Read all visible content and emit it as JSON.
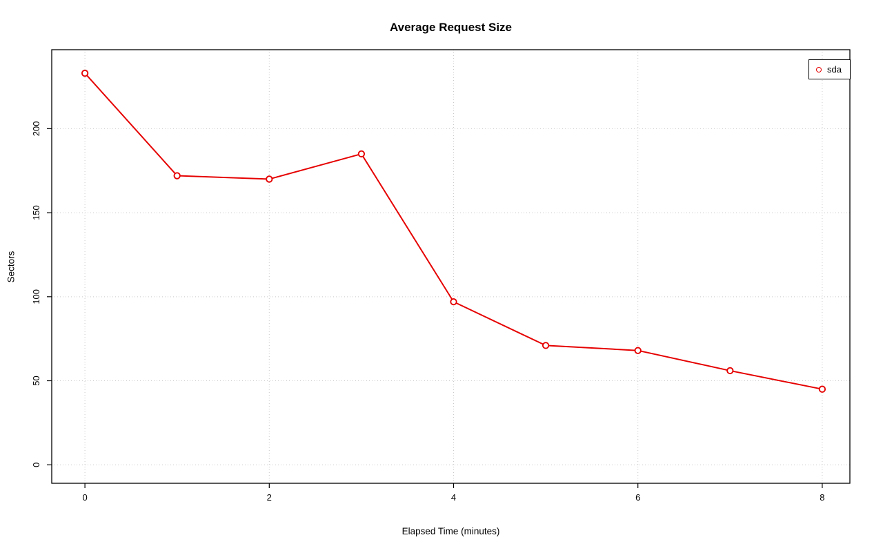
{
  "page": {
    "background": "#ffffff"
  },
  "chart_data": {
    "type": "line",
    "title": "Average Request Size",
    "xlabel": "Elapsed Time (minutes)",
    "ylabel": "Sectors",
    "x": [
      0,
      1,
      2,
      3,
      4,
      5,
      6,
      7,
      8
    ],
    "series": [
      {
        "name": "sda",
        "color": "#e60000",
        "marker": "open-circle",
        "values": [
          233,
          172,
          170,
          185,
          97,
          71,
          68,
          56,
          45
        ]
      }
    ],
    "xlim": [
      -0.36,
      8.3
    ],
    "ylim": [
      -11,
      247
    ],
    "xticks": [
      0,
      2,
      4,
      6,
      8
    ],
    "yticks": [
      0,
      50,
      100,
      150,
      200
    ],
    "grid": true,
    "grid_color": "#c9c9c9",
    "axis_color": "#000000",
    "legend": {
      "position": "top-right",
      "entries": [
        {
          "label": "sda",
          "color": "#e60000"
        }
      ]
    }
  }
}
